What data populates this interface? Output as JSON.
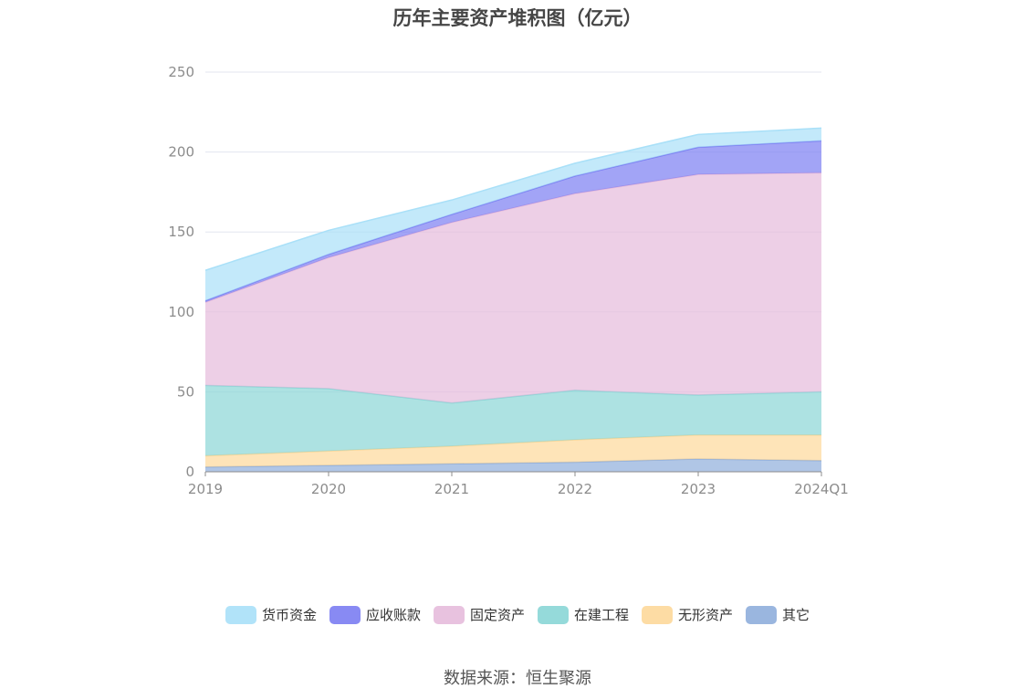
{
  "chart_data": {
    "type": "area",
    "title": "历年主要资产堆积图（亿元）",
    "categories": [
      "2019",
      "2020",
      "2021",
      "2022",
      "2023",
      "2024Q1"
    ],
    "y_ticks": [
      "0",
      "50",
      "100",
      "150",
      "200",
      "250"
    ],
    "ylim": [
      0,
      250
    ],
    "stacked": true,
    "grid": true,
    "legend_position": "bottom",
    "series": [
      {
        "name": "其它",
        "color": "#8FAEDC",
        "values": [
          3,
          4,
          5,
          6,
          8,
          7
        ]
      },
      {
        "name": "无形资产",
        "color": "#FDD89A",
        "values": [
          7,
          9,
          11,
          14,
          15,
          16
        ]
      },
      {
        "name": "在建工程",
        "color": "#8AD6D6",
        "values": [
          44,
          39,
          27,
          31,
          25,
          27
        ]
      },
      {
        "name": "固定资产",
        "color": "#E6BBDB",
        "values": [
          52,
          82,
          113,
          123,
          138,
          137
        ]
      },
      {
        "name": "应收账款",
        "color": "#7B7DF2",
        "values": [
          1,
          2,
          5,
          11,
          17,
          20
        ]
      },
      {
        "name": "货币资金",
        "color": "#A9E0F8",
        "values": [
          19,
          15,
          9,
          8,
          8,
          8
        ]
      }
    ]
  },
  "legend_order": [
    "货币资金",
    "应收账款",
    "固定资产",
    "在建工程",
    "无形资产",
    "其它"
  ],
  "source": "数据来源：恒生聚源"
}
